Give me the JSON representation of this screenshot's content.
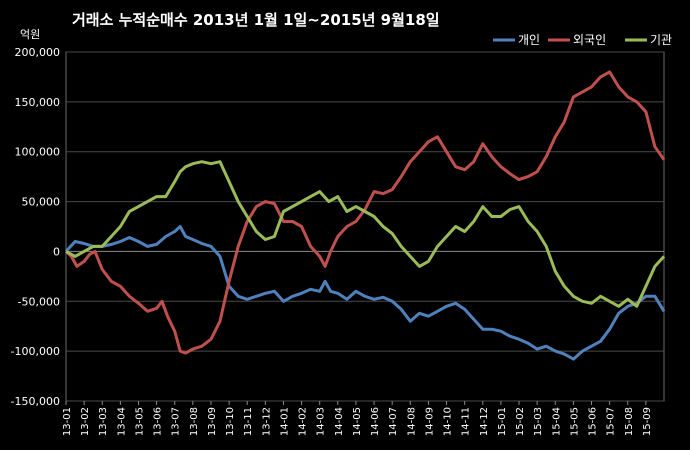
{
  "chart_data": {
    "type": "line",
    "title": "거래소 누적순매수 2013년 1월 1일~2015년 9월18일",
    "ylabel": "억원",
    "ylim": [
      -150000,
      200000
    ],
    "yticks": [
      200000,
      150000,
      100000,
      50000,
      0,
      -50000,
      -100000,
      -150000
    ],
    "ytick_labels": [
      "200,000",
      "150,000",
      "100,000",
      "50,000",
      "0",
      "-50,000",
      "-100,000",
      "-150,000"
    ],
    "x_range": [
      0,
      33
    ],
    "x_tick_labels": [
      "13-01",
      "13-02",
      "13-03",
      "13-04",
      "13-05",
      "13-06",
      "13-07",
      "13-08",
      "13-09",
      "13-10",
      "13-11",
      "13-12",
      "14-01",
      "14-02",
      "14-03",
      "14-04",
      "14-05",
      "14-06",
      "14-07",
      "14-08",
      "14-09",
      "14-10",
      "14-11",
      "14-12",
      "15-01",
      "15-02",
      "15-03",
      "15-04",
      "15-05",
      "15-06",
      "15-07",
      "15-08",
      "15-09"
    ],
    "grid": "horizontal",
    "legend": "top-right",
    "series": [
      {
        "name": "개인",
        "color": "#4f81bd",
        "points": [
          [
            0,
            0
          ],
          [
            0.5,
            10000
          ],
          [
            1,
            8000
          ],
          [
            1.5,
            5000
          ],
          [
            2,
            5000
          ],
          [
            2.5,
            7000
          ],
          [
            3,
            10000
          ],
          [
            3.5,
            14000
          ],
          [
            4,
            10000
          ],
          [
            4.5,
            5000
          ],
          [
            5,
            7000
          ],
          [
            5.5,
            15000
          ],
          [
            6,
            20000
          ],
          [
            6.3,
            25000
          ],
          [
            6.6,
            15000
          ],
          [
            7,
            12000
          ],
          [
            7.5,
            8000
          ],
          [
            8,
            5000
          ],
          [
            8.5,
            -5000
          ],
          [
            9,
            -35000
          ],
          [
            9.5,
            -45000
          ],
          [
            10,
            -48000
          ],
          [
            10.5,
            -45000
          ],
          [
            11,
            -42000
          ],
          [
            11.5,
            -40000
          ],
          [
            12,
            -50000
          ],
          [
            12.5,
            -45000
          ],
          [
            13,
            -42000
          ],
          [
            13.5,
            -38000
          ],
          [
            14,
            -40000
          ],
          [
            14.3,
            -30000
          ],
          [
            14.6,
            -40000
          ],
          [
            15,
            -42000
          ],
          [
            15.5,
            -48000
          ],
          [
            16,
            -40000
          ],
          [
            16.5,
            -45000
          ],
          [
            17,
            -48000
          ],
          [
            17.5,
            -46000
          ],
          [
            18,
            -50000
          ],
          [
            18.5,
            -58000
          ],
          [
            19,
            -70000
          ],
          [
            19.5,
            -62000
          ],
          [
            20,
            -65000
          ],
          [
            20.5,
            -60000
          ],
          [
            21,
            -55000
          ],
          [
            21.5,
            -52000
          ],
          [
            22,
            -58000
          ],
          [
            22.5,
            -68000
          ],
          [
            23,
            -78000
          ],
          [
            23.5,
            -78000
          ],
          [
            24,
            -80000
          ],
          [
            24.5,
            -85000
          ],
          [
            25,
            -88000
          ],
          [
            25.5,
            -92000
          ],
          [
            26,
            -98000
          ],
          [
            26.5,
            -95000
          ],
          [
            27,
            -100000
          ],
          [
            27.5,
            -103000
          ],
          [
            28,
            -108000
          ],
          [
            28.5,
            -100000
          ],
          [
            29,
            -95000
          ],
          [
            29.5,
            -90000
          ],
          [
            30,
            -78000
          ],
          [
            30.5,
            -62000
          ],
          [
            31,
            -55000
          ],
          [
            31.5,
            -52000
          ],
          [
            32,
            -45000
          ],
          [
            32.5,
            -45000
          ],
          [
            33,
            -60000
          ]
        ]
      },
      {
        "name": "외국인",
        "color": "#c0504d",
        "points": [
          [
            0,
            0
          ],
          [
            0.3,
            -5000
          ],
          [
            0.6,
            -15000
          ],
          [
            1,
            -10000
          ],
          [
            1.3,
            -3000
          ],
          [
            1.6,
            0
          ],
          [
            2,
            -18000
          ],
          [
            2.5,
            -30000
          ],
          [
            3,
            -35000
          ],
          [
            3.5,
            -45000
          ],
          [
            4,
            -52000
          ],
          [
            4.5,
            -60000
          ],
          [
            5,
            -57000
          ],
          [
            5.3,
            -50000
          ],
          [
            5.6,
            -65000
          ],
          [
            6,
            -80000
          ],
          [
            6.3,
            -100000
          ],
          [
            6.6,
            -102000
          ],
          [
            7,
            -98000
          ],
          [
            7.5,
            -95000
          ],
          [
            8,
            -88000
          ],
          [
            8.5,
            -70000
          ],
          [
            9,
            -30000
          ],
          [
            9.5,
            5000
          ],
          [
            10,
            30000
          ],
          [
            10.5,
            45000
          ],
          [
            11,
            50000
          ],
          [
            11.5,
            48000
          ],
          [
            12,
            30000
          ],
          [
            12.5,
            30000
          ],
          [
            13,
            25000
          ],
          [
            13.5,
            5000
          ],
          [
            14,
            -5000
          ],
          [
            14.3,
            -15000
          ],
          [
            14.6,
            0
          ],
          [
            15,
            15000
          ],
          [
            15.5,
            25000
          ],
          [
            16,
            30000
          ],
          [
            16.5,
            42000
          ],
          [
            17,
            60000
          ],
          [
            17.5,
            58000
          ],
          [
            18,
            62000
          ],
          [
            18.5,
            75000
          ],
          [
            19,
            90000
          ],
          [
            19.5,
            100000
          ],
          [
            20,
            110000
          ],
          [
            20.5,
            115000
          ],
          [
            21,
            100000
          ],
          [
            21.5,
            85000
          ],
          [
            22,
            82000
          ],
          [
            22.5,
            90000
          ],
          [
            23,
            108000
          ],
          [
            23.5,
            95000
          ],
          [
            24,
            85000
          ],
          [
            24.5,
            78000
          ],
          [
            25,
            72000
          ],
          [
            25.5,
            75000
          ],
          [
            26,
            80000
          ],
          [
            26.5,
            95000
          ],
          [
            27,
            115000
          ],
          [
            27.5,
            130000
          ],
          [
            28,
            155000
          ],
          [
            28.5,
            160000
          ],
          [
            29,
            165000
          ],
          [
            29.5,
            175000
          ],
          [
            30,
            180000
          ],
          [
            30.5,
            165000
          ],
          [
            31,
            155000
          ],
          [
            31.5,
            150000
          ],
          [
            32,
            140000
          ],
          [
            32.5,
            105000
          ],
          [
            33,
            92000
          ]
        ]
      },
      {
        "name": "기관",
        "color": "#9bbb59",
        "points": [
          [
            0,
            0
          ],
          [
            0.5,
            -5000
          ],
          [
            1,
            0
          ],
          [
            1.5,
            5000
          ],
          [
            2,
            5000
          ],
          [
            2.5,
            15000
          ],
          [
            3,
            25000
          ],
          [
            3.5,
            40000
          ],
          [
            4,
            45000
          ],
          [
            4.5,
            50000
          ],
          [
            5,
            55000
          ],
          [
            5.5,
            55000
          ],
          [
            6,
            70000
          ],
          [
            6.3,
            80000
          ],
          [
            6.6,
            85000
          ],
          [
            7,
            88000
          ],
          [
            7.5,
            90000
          ],
          [
            8,
            88000
          ],
          [
            8.5,
            90000
          ],
          [
            9,
            70000
          ],
          [
            9.5,
            50000
          ],
          [
            10,
            35000
          ],
          [
            10.5,
            20000
          ],
          [
            11,
            12000
          ],
          [
            11.5,
            15000
          ],
          [
            12,
            40000
          ],
          [
            12.5,
            45000
          ],
          [
            13,
            50000
          ],
          [
            13.5,
            55000
          ],
          [
            14,
            60000
          ],
          [
            14.5,
            50000
          ],
          [
            15,
            55000
          ],
          [
            15.5,
            40000
          ],
          [
            16,
            45000
          ],
          [
            16.5,
            40000
          ],
          [
            17,
            35000
          ],
          [
            17.5,
            25000
          ],
          [
            18,
            18000
          ],
          [
            18.5,
            5000
          ],
          [
            19,
            -5000
          ],
          [
            19.5,
            -15000
          ],
          [
            20,
            -10000
          ],
          [
            20.5,
            5000
          ],
          [
            21,
            15000
          ],
          [
            21.5,
            25000
          ],
          [
            22,
            20000
          ],
          [
            22.5,
            30000
          ],
          [
            23,
            45000
          ],
          [
            23.5,
            35000
          ],
          [
            24,
            35000
          ],
          [
            24.5,
            42000
          ],
          [
            25,
            45000
          ],
          [
            25.5,
            30000
          ],
          [
            26,
            20000
          ],
          [
            26.5,
            5000
          ],
          [
            27,
            -20000
          ],
          [
            27.5,
            -35000
          ],
          [
            28,
            -45000
          ],
          [
            28.5,
            -50000
          ],
          [
            29,
            -52000
          ],
          [
            29.5,
            -45000
          ],
          [
            30,
            -50000
          ],
          [
            30.5,
            -55000
          ],
          [
            31,
            -48000
          ],
          [
            31.5,
            -55000
          ],
          [
            32,
            -35000
          ],
          [
            32.5,
            -15000
          ],
          [
            33,
            -5000
          ]
        ]
      }
    ]
  }
}
